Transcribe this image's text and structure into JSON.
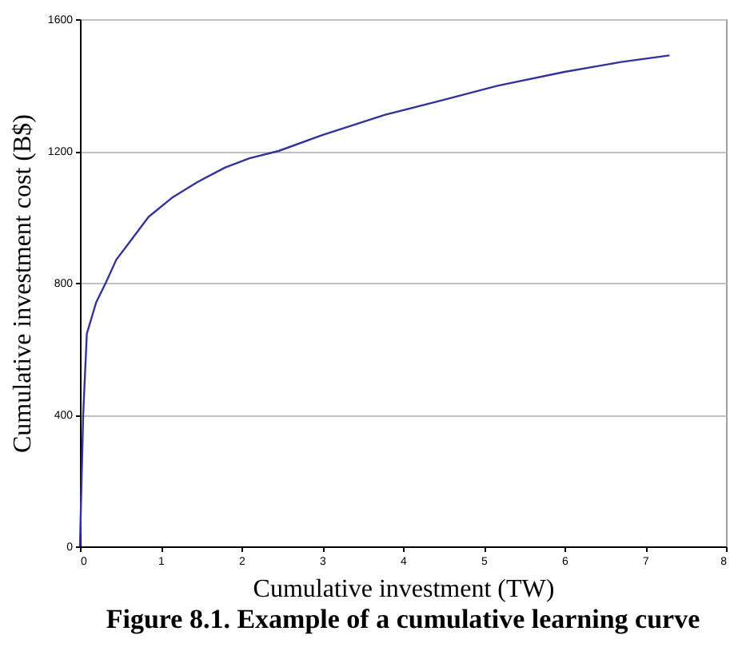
{
  "chart_data": {
    "type": "line",
    "title": "Figure 8.1.      Example of a cumulative learning curve",
    "xlabel": "Cumulative investment (TW)",
    "ylabel": "Cumulative investment cost (B$)",
    "series": [
      {
        "color": "#333399",
        "x": [
          0,
          0.04,
          0.085,
          0.2,
          0.32,
          0.45,
          0.61,
          0.85,
          1.14,
          1.45,
          1.8,
          2.1,
          2.46,
          3.0,
          3.78,
          4.5,
          5.17,
          6.0,
          6.7,
          7.3
        ],
        "values": [
          0,
          400,
          645,
          740,
          800,
          870,
          922,
          1000,
          1058,
          1105,
          1150,
          1178,
          1200,
          1248,
          1310,
          1355,
          1398,
          1440,
          1470,
          1490
        ]
      }
    ],
    "xlim": [
      0,
      8
    ],
    "xticks": [
      0,
      1,
      2,
      3,
      4,
      5,
      6,
      7,
      8
    ],
    "ylim": [
      0,
      1600
    ],
    "yticks": [
      0,
      400,
      800,
      1200,
      1600
    ],
    "grid": "y",
    "marker": "none",
    "line_style": "solid",
    "legend": false
  }
}
